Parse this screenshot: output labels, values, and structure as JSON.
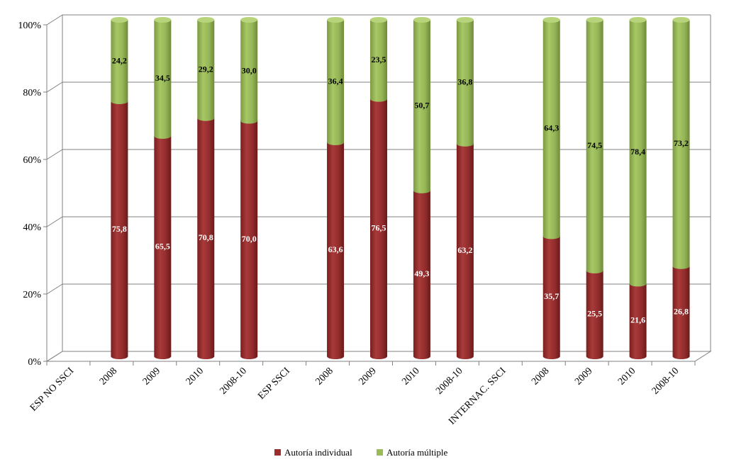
{
  "chart_data": {
    "type": "bar",
    "stacked": true,
    "style": "3d-cylinder",
    "categories": [
      "ESP NO SSCI",
      "2008",
      "2009",
      "2010",
      "2008-10",
      "ESP SSCI",
      "2008",
      "2009",
      "2010",
      "2008-10",
      "INTERNAC. SSCI",
      "2008",
      "2009",
      "2010",
      "2008-10"
    ],
    "series": [
      {
        "name": "Autoría individual",
        "color": "#9b2d2d",
        "values": [
          null,
          75.8,
          65.5,
          70.8,
          70.0,
          null,
          63.6,
          76.5,
          49.3,
          63.2,
          null,
          35.7,
          25.5,
          21.6,
          26.8
        ],
        "labels": [
          "",
          "75,8",
          "65,5",
          "70,8",
          "70,0",
          "",
          "63,6",
          "76,5",
          "49,3",
          "63,2",
          "",
          "35,7",
          "25,5",
          "21,6",
          "26,8"
        ]
      },
      {
        "name": "Autoría múltiple",
        "color": "#9bbb59",
        "values": [
          null,
          24.2,
          34.5,
          29.2,
          30.0,
          null,
          36.4,
          23.5,
          50.7,
          36.8,
          null,
          64.3,
          74.5,
          78.4,
          73.2
        ],
        "labels": [
          "",
          "24,2",
          "34,5",
          "29,2",
          "30,0",
          "",
          "36,4",
          "23,5",
          "50,7",
          "36,8",
          "",
          "64,3",
          "74,5",
          "78,4",
          "73,2"
        ]
      }
    ],
    "yticks": [
      "0%",
      "20%",
      "40%",
      "60%",
      "80%",
      "100%"
    ],
    "ylim": [
      0,
      100
    ],
    "grid": true,
    "legend_position": "bottom"
  }
}
